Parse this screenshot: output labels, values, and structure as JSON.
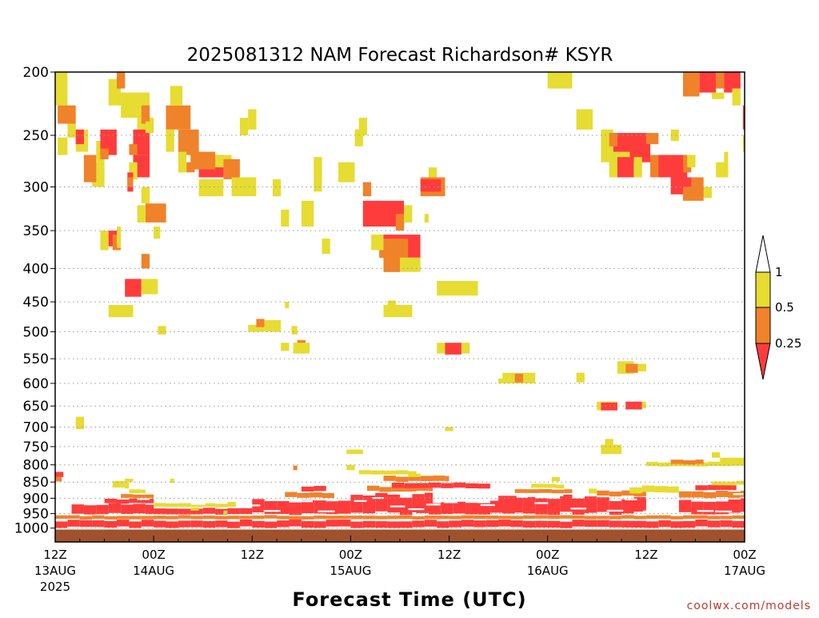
{
  "chart_data": {
    "type": "heatmap",
    "title": "2025081312 NAM Forecast Richardson# KSYR",
    "xlabel": "Forecast Time (UTC)",
    "credit": "coolwx.com/models",
    "x_unit": "forecast hour from 2025-08-13 12Z",
    "x_range": [
      0,
      84
    ],
    "y_unit": "pressure (hPa), log-scaled axis",
    "y_range": [
      1050,
      200
    ],
    "y_ticks": [
      200,
      250,
      300,
      350,
      400,
      450,
      500,
      550,
      600,
      650,
      700,
      750,
      800,
      850,
      900,
      950,
      1000
    ],
    "x_ticks": [
      {
        "hour": 0,
        "label": "12Z",
        "sub": "13AUG",
        "sub2": "2025"
      },
      {
        "hour": 12,
        "label": "00Z",
        "sub": "14AUG",
        "sub2": ""
      },
      {
        "hour": 24,
        "label": "12Z",
        "sub": "",
        "sub2": ""
      },
      {
        "hour": 36,
        "label": "00Z",
        "sub": "15AUG",
        "sub2": ""
      },
      {
        "hour": 48,
        "label": "12Z",
        "sub": "",
        "sub2": ""
      },
      {
        "hour": 60,
        "label": "00Z",
        "sub": "16AUG",
        "sub2": ""
      },
      {
        "hour": 72,
        "label": "12Z",
        "sub": "",
        "sub2": ""
      },
      {
        "hour": 84,
        "label": "00Z",
        "sub": "17AUG",
        "sub2": ""
      }
    ],
    "colorbar": {
      "labels": [
        "1",
        "0.5",
        "0.25"
      ],
      "classes": [
        {
          "name": "< 0.25",
          "color": "#ff3c3c"
        },
        {
          "name": "0.25 - 0.5",
          "color": "#f0822a"
        },
        {
          "name": "0.5 - 1",
          "color": "#e6dc32"
        }
      ]
    },
    "colors": {
      "red": "#ff3c3c",
      "orange": "#f0822a",
      "yellow": "#e6dc32",
      "ground": "#a0522d"
    },
    "ground_from_hpa": 1005,
    "cell_classes": {
      "r": "< 0.25",
      "o": "0.25 - 0.5",
      "y": "0.5 - 1"
    },
    "cells": [
      [
        "y",
        0.0,
        1.5,
        200,
        225
      ],
      [
        "o",
        0.3,
        2.5,
        225,
        240
      ],
      [
        "y",
        1.5,
        2.5,
        240,
        252
      ],
      [
        "y",
        0.3,
        1.5,
        252,
        268
      ],
      [
        "y",
        2.5,
        4.0,
        245,
        265
      ],
      [
        "r",
        2.5,
        3.5,
        245,
        258
      ],
      [
        "y",
        4.5,
        6.0,
        275,
        300
      ],
      [
        "o",
        3.5,
        5.0,
        268,
        295
      ],
      [
        "y",
        5.0,
        6.0,
        255,
        275
      ],
      [
        "r",
        5.5,
        7.5,
        245,
        268
      ],
      [
        "o",
        5.5,
        6.5,
        262,
        272
      ],
      [
        "y",
        6.5,
        8.0,
        205,
        225
      ],
      [
        "o",
        7.5,
        8.5,
        200,
        212
      ],
      [
        "y",
        8.0,
        11.5,
        215,
        235
      ],
      [
        "y",
        10.0,
        12.0,
        235,
        248
      ],
      [
        "o",
        10.5,
        11.5,
        225,
        240
      ],
      [
        "r",
        9.5,
        11.5,
        245,
        268
      ],
      [
        "o",
        9.0,
        10.0,
        258,
        268
      ],
      [
        "y",
        11.0,
        12.0,
        238,
        248
      ],
      [
        "r",
        9.5,
        11.5,
        268,
        290
      ],
      [
        "y",
        9.0,
        10.0,
        275,
        292
      ],
      [
        "r",
        8.8,
        9.5,
        285,
        305
      ],
      [
        "o",
        8.8,
        9.5,
        290,
        300
      ],
      [
        "y",
        10.5,
        11.5,
        300,
        318
      ],
      [
        "o",
        11.0,
        13.5,
        318,
        340
      ],
      [
        "y",
        10.0,
        11.0,
        320,
        340
      ],
      [
        "y",
        12.0,
        12.8,
        345,
        360
      ],
      [
        "y",
        5.5,
        6.5,
        350,
        375
      ],
      [
        "r",
        6.5,
        7.5,
        350,
        370
      ],
      [
        "o",
        7.0,
        8.0,
        355,
        375
      ],
      [
        "y",
        7.5,
        8.0,
        345,
        372
      ],
      [
        "o",
        10.5,
        11.5,
        380,
        400
      ],
      [
        "r",
        8.5,
        10.5,
        415,
        442
      ],
      [
        "y",
        10.5,
        12.5,
        415,
        438
      ],
      [
        "y",
        6.5,
        9.5,
        455,
        475
      ],
      [
        "y",
        12.5,
        13.5,
        490,
        505
      ],
      [
        "o",
        13.5,
        16.5,
        225,
        245
      ],
      [
        "y",
        14.0,
        15.5,
        210,
        225
      ],
      [
        "y",
        13.5,
        14.5,
        245,
        265
      ],
      [
        "o",
        15.0,
        17.5,
        245,
        268
      ],
      [
        "y",
        15.0,
        16.0,
        265,
        285
      ],
      [
        "o",
        16.0,
        17.0,
        275,
        285
      ],
      [
        "r",
        17.5,
        20.5,
        268,
        290
      ],
      [
        "o",
        16.5,
        19.5,
        265,
        282
      ],
      [
        "y",
        19.5,
        21.5,
        268,
        280
      ],
      [
        "o",
        20.5,
        22.5,
        272,
        292
      ],
      [
        "y",
        17.5,
        20.5,
        292,
        310
      ],
      [
        "y",
        21.5,
        24.5,
        290,
        310
      ],
      [
        "y",
        23.5,
        24.5,
        228,
        245
      ],
      [
        "y",
        22.5,
        23.5,
        235,
        250
      ],
      [
        "y",
        26.5,
        27.5,
        292,
        310
      ],
      [
        "y",
        27.5,
        28.5,
        325,
        345
      ],
      [
        "y",
        30.0,
        31.5,
        315,
        345
      ],
      [
        "y",
        31.5,
        32.5,
        270,
        305
      ],
      [
        "y",
        32.5,
        33.5,
        360,
        380
      ],
      [
        "y",
        34.5,
        36.5,
        275,
        295
      ],
      [
        "y",
        36.5,
        37.5,
        245,
        260
      ],
      [
        "y",
        37.0,
        38.0,
        235,
        250
      ],
      [
        "r",
        37.5,
        42.5,
        315,
        345
      ],
      [
        "o",
        41.5,
        42.5,
        330,
        350
      ],
      [
        "y",
        42.5,
        43.5,
        320,
        340
      ],
      [
        "o",
        37.5,
        38.5,
        295,
        310
      ],
      [
        "r",
        39.5,
        44.5,
        355,
        385
      ],
      [
        "o",
        39.5,
        43.0,
        360,
        385
      ],
      [
        "y",
        38.5,
        40.0,
        355,
        375
      ],
      [
        "o",
        40.0,
        42.0,
        380,
        405
      ],
      [
        "y",
        42.0,
        44.5,
        385,
        405
      ],
      [
        "o",
        44.5,
        47.5,
        290,
        310
      ],
      [
        "r",
        44.5,
        47.0,
        292,
        305
      ],
      [
        "y",
        45.5,
        46.5,
        280,
        290
      ],
      [
        "y",
        45.0,
        45.5,
        330,
        340
      ],
      [
        "y",
        46.5,
        51.5,
        418,
        440
      ],
      [
        "y",
        40.0,
        43.5,
        455,
        475
      ],
      [
        "y",
        40.5,
        41.5,
        448,
        460
      ],
      [
        "y",
        23.5,
        25.5,
        488,
        500
      ],
      [
        "o",
        24.5,
        25.5,
        478,
        492
      ],
      [
        "y",
        25.5,
        27.5,
        480,
        500
      ],
      [
        "y",
        27.5,
        28.5,
        520,
        535
      ],
      [
        "o",
        29.5,
        30.5,
        515,
        540
      ],
      [
        "y",
        29.0,
        31.0,
        520,
        540
      ],
      [
        "y",
        28.8,
        29.5,
        490,
        505
      ],
      [
        "y",
        28.0,
        28.5,
        450,
        460
      ],
      [
        "r",
        47.5,
        49.5,
        520,
        542
      ],
      [
        "y",
        46.5,
        47.5,
        520,
        540
      ],
      [
        "y",
        49.5,
        50.5,
        520,
        540
      ],
      [
        "y",
        54.5,
        58.5,
        578,
        600
      ],
      [
        "o",
        56.0,
        57.0,
        580,
        598
      ],
      [
        "y",
        63.5,
        64.5,
        578,
        598
      ],
      [
        "y",
        54.0,
        55.0,
        590,
        600
      ],
      [
        "y",
        60.0,
        63.0,
        200,
        212
      ],
      [
        "y",
        63.5,
        65.5,
        228,
        245
      ],
      [
        "y",
        66.5,
        68.0,
        245,
        275
      ],
      [
        "r",
        68.0,
        72.5,
        248,
        275
      ],
      [
        "o",
        67.5,
        68.5,
        248,
        260
      ],
      [
        "o",
        72.0,
        73.5,
        248,
        258
      ],
      [
        "y",
        67.5,
        70.0,
        265,
        290
      ],
      [
        "r",
        68.5,
        70.5,
        270,
        290
      ],
      [
        "y",
        70.5,
        71.5,
        270,
        290
      ],
      [
        "o",
        72.5,
        74.0,
        268,
        290
      ],
      [
        "r",
        73.5,
        77.0,
        268,
        290
      ],
      [
        "o",
        76.5,
        77.5,
        268,
        285
      ],
      [
        "y",
        77.0,
        78.0,
        268,
        280
      ],
      [
        "y",
        75.0,
        76.0,
        245,
        255
      ],
      [
        "r",
        75.0,
        78.0,
        290,
        308
      ],
      [
        "o",
        77.5,
        79.0,
        290,
        310
      ],
      [
        "y",
        79.0,
        80.0,
        300,
        312
      ],
      [
        "o",
        76.5,
        79.0,
        300,
        315
      ],
      [
        "y",
        80.5,
        82.0,
        275,
        290
      ],
      [
        "y",
        81.5,
        82.0,
        265,
        275
      ],
      [
        "o",
        76.5,
        78.5,
        200,
        218
      ],
      [
        "r",
        78.5,
        80.5,
        200,
        215
      ],
      [
        "o",
        80.5,
        81.5,
        200,
        212
      ],
      [
        "r",
        81.5,
        82.5,
        200,
        215
      ],
      [
        "y",
        80.0,
        81.5,
        215,
        220
      ],
      [
        "r",
        82.0,
        83.5,
        200,
        212
      ],
      [
        "y",
        82.5,
        83.5,
        212,
        225
      ],
      [
        "r",
        83.8,
        84.0,
        225,
        245
      ],
      [
        "y",
        83.8,
        84.0,
        250,
        265
      ],
      [
        "y",
        66.0,
        68.5,
        640,
        660
      ],
      [
        "r",
        66.5,
        68.5,
        642,
        660
      ],
      [
        "r",
        69.5,
        71.5,
        640,
        658
      ],
      [
        "y",
        71.5,
        72.0,
        640,
        655
      ],
      [
        "y",
        68.5,
        70.5,
        555,
        580
      ],
      [
        "o",
        69.5,
        71.0,
        560,
        578
      ],
      [
        "y",
        71.0,
        72.0,
        560,
        575
      ],
      [
        "y",
        66.5,
        69.0,
        745,
        770
      ],
      [
        "y",
        67.0,
        68.0,
        730,
        748
      ],
      [
        "y",
        2.5,
        3.5,
        675,
        705
      ],
      [
        "y",
        35.5,
        37.5,
        758,
        770
      ],
      [
        "y",
        47.5,
        48.5,
        700,
        710
      ]
    ],
    "bands": [
      {
        "cls": "r",
        "t0": 0,
        "t1": 84,
        "p0": 970,
        "p1": 1000
      },
      {
        "cls": "o",
        "t0": 0,
        "t1": 84,
        "p0": 955,
        "p1": 970
      },
      {
        "cls": "r",
        "t0": 2,
        "t1": 12,
        "p0": 915,
        "p1": 955
      },
      {
        "cls": "r",
        "t0": 6,
        "t1": 12,
        "p0": 900,
        "p1": 918
      },
      {
        "cls": "o",
        "t0": 8,
        "t1": 12,
        "p0": 885,
        "p1": 900
      },
      {
        "cls": "y",
        "t0": 9,
        "t1": 11,
        "p0": 870,
        "p1": 885
      },
      {
        "cls": "y",
        "t0": 7,
        "t1": 9,
        "p0": 845,
        "p1": 870
      },
      {
        "cls": "r",
        "t0": 12,
        "t1": 24,
        "p0": 930,
        "p1": 955
      },
      {
        "cls": "y",
        "t0": 12,
        "t1": 22,
        "p0": 915,
        "p1": 930
      },
      {
        "cls": "r",
        "t0": 24,
        "t1": 36,
        "p0": 900,
        "p1": 955
      },
      {
        "cls": "o",
        "t0": 28,
        "t1": 34,
        "p0": 880,
        "p1": 900
      },
      {
        "cls": "r",
        "t0": 30,
        "t1": 33,
        "p0": 860,
        "p1": 880
      },
      {
        "cls": "r",
        "t0": 36,
        "t1": 46,
        "p0": 880,
        "p1": 955
      },
      {
        "cls": "o",
        "t0": 38,
        "t1": 46,
        "p0": 860,
        "p1": 880
      },
      {
        "cls": "r",
        "t0": 41,
        "t1": 53,
        "p0": 850,
        "p1": 870
      },
      {
        "cls": "o",
        "t0": 40,
        "t1": 48,
        "p0": 830,
        "p1": 850
      },
      {
        "cls": "y",
        "t0": 37,
        "t1": 44,
        "p0": 815,
        "p1": 830
      },
      {
        "cls": "r",
        "t0": 44,
        "t1": 56,
        "p0": 905,
        "p1": 955
      },
      {
        "cls": "r",
        "t0": 54,
        "t1": 66,
        "p0": 885,
        "p1": 955
      },
      {
        "cls": "o",
        "t0": 56,
        "t1": 63,
        "p0": 870,
        "p1": 885
      },
      {
        "cls": "y",
        "t0": 58,
        "t1": 62,
        "p0": 855,
        "p1": 870
      },
      {
        "cls": "r",
        "t0": 66,
        "t1": 72,
        "p0": 895,
        "p1": 955
      },
      {
        "cls": "o",
        "t0": 66,
        "t1": 72,
        "p0": 875,
        "p1": 895
      },
      {
        "cls": "y",
        "t0": 70,
        "t1": 76,
        "p0": 860,
        "p1": 885
      },
      {
        "cls": "o",
        "t0": 76,
        "t1": 84,
        "p0": 875,
        "p1": 900
      },
      {
        "cls": "r",
        "t0": 76,
        "t1": 84,
        "p0": 900,
        "p1": 955
      },
      {
        "cls": "r",
        "t0": 78,
        "t1": 83,
        "p0": 855,
        "p1": 875
      },
      {
        "cls": "y",
        "t0": 80,
        "t1": 84,
        "p0": 845,
        "p1": 860
      },
      {
        "cls": "y",
        "t0": 72,
        "t1": 84,
        "p0": 790,
        "p1": 805
      },
      {
        "cls": "o",
        "t0": 75,
        "t1": 79,
        "p0": 785,
        "p1": 800
      }
    ],
    "specks": [
      [
        "r",
        0.0,
        1.0,
        820,
        835
      ],
      [
        "o",
        0.0,
        0.8,
        835,
        848
      ],
      [
        "y",
        14.0,
        14.5,
        840,
        852
      ],
      [
        "y",
        20.5,
        21.0,
        940,
        952
      ],
      [
        "o",
        29.0,
        29.5,
        802,
        815
      ],
      [
        "y",
        35.5,
        36.5,
        800,
        815
      ],
      [
        "y",
        60.5,
        61.5,
        835,
        848
      ],
      [
        "y",
        65.0,
        66.0,
        870,
        885
      ],
      [
        "y",
        80.0,
        81.0,
        765,
        780
      ],
      [
        "y",
        81.0,
        84.0,
        780,
        795
      ],
      [
        "y",
        8.5,
        9.5,
        840,
        850
      ],
      [
        "y",
        43.0,
        44.5,
        825,
        835
      ],
      [
        "y",
        21.0,
        22.0,
        910,
        920
      ],
      [
        "y",
        16.5,
        17.5,
        930,
        940
      ]
    ]
  }
}
